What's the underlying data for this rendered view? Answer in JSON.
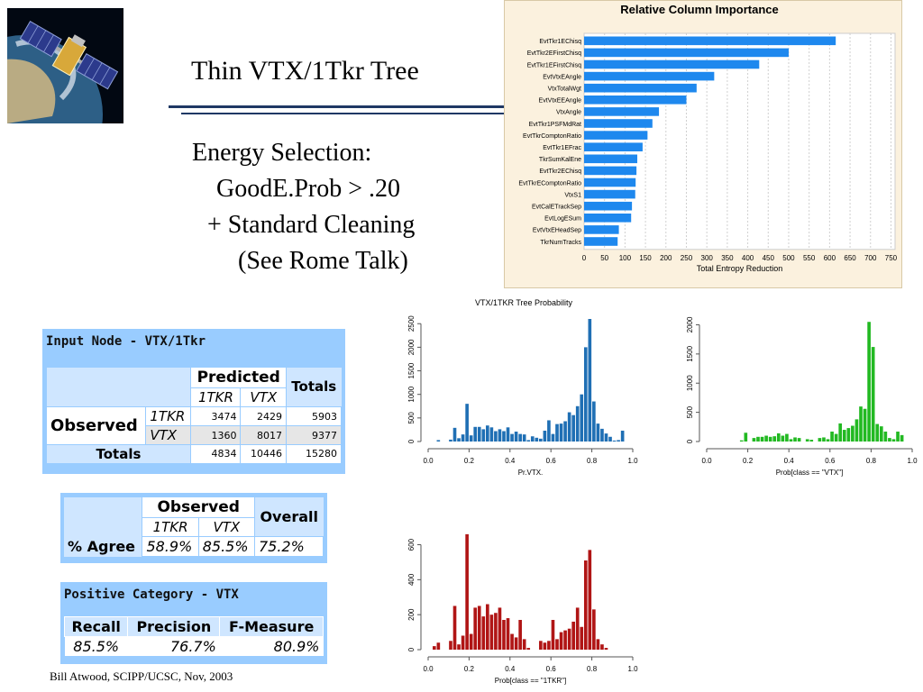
{
  "slide": {
    "title": "Thin VTX/1Tkr Tree",
    "energy_lines": [
      "Energy Selection:",
      "GoodE.Prob > .20",
      "+ Standard Cleaning",
      "(See Rome Talk)"
    ],
    "footer": "Bill Atwood,  SCIPP/UCSC, Nov, 2003"
  },
  "colors": {
    "importance_bar": "#1e88ee",
    "hist_blue": "#1f6fb4",
    "hist_green": "#22b922",
    "hist_red": "#b01515",
    "table_bg": "#99ccff"
  },
  "input_node_table": {
    "title": "Input Node - VTX/1Tkr",
    "predicted": "Predicted",
    "totals": "Totals",
    "classes": [
      "1TKR",
      "VTX"
    ],
    "observed": "Observed",
    "rows": [
      {
        "label": "1TKR",
        "values": [
          "3474",
          "2429",
          "5903"
        ]
      },
      {
        "label": "VTX",
        "values": [
          "1360",
          "8017",
          "9377"
        ]
      }
    ],
    "totals_row": {
      "label": "Totals",
      "values": [
        "4834",
        "10446",
        "15280"
      ]
    }
  },
  "agree_table": {
    "observed": "Observed",
    "overall": "Overall",
    "classes": [
      "1TKR",
      "VTX"
    ],
    "row_label": "% Agree",
    "values": [
      "58.9%",
      "85.5%",
      "75.2%"
    ]
  },
  "positive_table": {
    "title": "Positive Category - VTX",
    "headers": [
      "Recall",
      "Precision",
      "F-Measure"
    ],
    "values": [
      "85.5%",
      "76.7%",
      "80.9%"
    ]
  },
  "chart_data": [
    {
      "type": "bar",
      "orientation": "horizontal",
      "title": "Relative Column Importance",
      "xlabel": "Total Entropy Reduction",
      "xlim": [
        0,
        760
      ],
      "xticks": [
        0,
        50,
        100,
        150,
        200,
        250,
        300,
        350,
        400,
        450,
        500,
        550,
        600,
        650,
        700,
        750
      ],
      "grid": true,
      "categories": [
        "EvtTkr1EChisq",
        "EvtTkr2EFirstChisq",
        "EvtTkr1EFirstChisq",
        "EvtVtxEAngle",
        "VtxTotalWgt",
        "EvtVtxEEAngle",
        "VtxAngle",
        "EvtTkr1PSFMdRat",
        "EvtTkrComptonRatio",
        "EvtTkr1EFrac",
        "TkrSumKalEne",
        "EvtTkr2EChisq",
        "EvtTkrEComptonRatio",
        "VtxS1",
        "EvtCalETrackSep",
        "EvtLogESum",
        "EvtVtxEHeadSep",
        "TkrNumTracks"
      ],
      "values": [
        615,
        500,
        428,
        318,
        275,
        250,
        183,
        167,
        155,
        143,
        130,
        128,
        126,
        125,
        117,
        115,
        85,
        82
      ]
    },
    {
      "type": "bar",
      "title": "VTX/1TKR Tree Probability",
      "xlabel": "Pr.VTX.",
      "xlim": [
        0.0,
        1.0
      ],
      "xticks": [
        "0.0",
        "0.2",
        "0.4",
        "0.6",
        "0.8",
        "1.0"
      ],
      "ylim": [
        0,
        2600
      ],
      "yticks": [
        "0",
        "500",
        "1000",
        "1500",
        "2000",
        "2500"
      ],
      "x": [
        0.05,
        0.11,
        0.13,
        0.15,
        0.17,
        0.19,
        0.21,
        0.23,
        0.25,
        0.27,
        0.29,
        0.31,
        0.33,
        0.35,
        0.37,
        0.39,
        0.41,
        0.43,
        0.45,
        0.47,
        0.49,
        0.51,
        0.53,
        0.55,
        0.57,
        0.59,
        0.61,
        0.63,
        0.65,
        0.67,
        0.69,
        0.71,
        0.73,
        0.75,
        0.77,
        0.79,
        0.81,
        0.83,
        0.85,
        0.87,
        0.89,
        0.91,
        0.93,
        0.95
      ],
      "values": [
        30,
        40,
        290,
        70,
        150,
        800,
        130,
        310,
        310,
        260,
        340,
        300,
        220,
        260,
        220,
        300,
        160,
        210,
        160,
        150,
        30,
        110,
        80,
        60,
        230,
        450,
        160,
        370,
        380,
        430,
        620,
        560,
        750,
        1000,
        2000,
        2600,
        850,
        380,
        270,
        170,
        100,
        20,
        30,
        230
      ]
    },
    {
      "type": "bar",
      "xlabel": "Prob[class == \"VTX\"]",
      "xlim": [
        0.0,
        1.0
      ],
      "xticks": [
        "0.0",
        "0.2",
        "0.4",
        "0.6",
        "0.8",
        "1.0"
      ],
      "ylim": [
        0,
        2100
      ],
      "yticks": [
        "0",
        "500",
        "1000",
        "1500",
        "2000"
      ],
      "x": [
        0.17,
        0.19,
        0.23,
        0.25,
        0.27,
        0.29,
        0.31,
        0.33,
        0.35,
        0.37,
        0.39,
        0.41,
        0.43,
        0.45,
        0.49,
        0.51,
        0.55,
        0.57,
        0.59,
        0.61,
        0.63,
        0.65,
        0.67,
        0.69,
        0.71,
        0.73,
        0.75,
        0.77,
        0.79,
        0.81,
        0.83,
        0.85,
        0.87,
        0.89,
        0.91,
        0.93,
        0.95
      ],
      "values": [
        20,
        150,
        60,
        80,
        80,
        100,
        80,
        90,
        140,
        100,
        130,
        40,
        70,
        60,
        40,
        30,
        60,
        70,
        40,
        170,
        130,
        310,
        200,
        230,
        270,
        380,
        600,
        560,
        2050,
        1620,
        300,
        260,
        170,
        60,
        40,
        170,
        110
      ]
    },
    {
      "type": "bar",
      "xlabel": "Prob[class == \"1TKR\"]",
      "xlim": [
        0.0,
        1.0
      ],
      "xticks": [
        "0.0",
        "0.2",
        "0.4",
        "0.6",
        "0.8",
        "1.0"
      ],
      "ylim": [
        0,
        680
      ],
      "yticks": [
        "0",
        "200",
        "400",
        "600"
      ],
      "x": [
        0.03,
        0.05,
        0.07,
        0.09,
        0.11,
        0.13,
        0.15,
        0.17,
        0.19,
        0.21,
        0.23,
        0.25,
        0.27,
        0.29,
        0.31,
        0.33,
        0.35,
        0.37,
        0.39,
        0.41,
        0.43,
        0.45,
        0.47,
        0.49,
        0.51,
        0.53,
        0.55,
        0.57,
        0.59,
        0.61,
        0.63,
        0.65,
        0.67,
        0.69,
        0.71,
        0.73,
        0.75,
        0.77,
        0.79,
        0.81,
        0.83,
        0.85,
        0.87
      ],
      "values": [
        20,
        40,
        0,
        0,
        50,
        250,
        30,
        80,
        660,
        90,
        240,
        250,
        190,
        260,
        200,
        210,
        240,
        170,
        180,
        90,
        70,
        170,
        60,
        10,
        0,
        0,
        50,
        40,
        50,
        170,
        60,
        100,
        110,
        120,
        160,
        240,
        130,
        510,
        570,
        230,
        60,
        30,
        10
      ]
    }
  ]
}
